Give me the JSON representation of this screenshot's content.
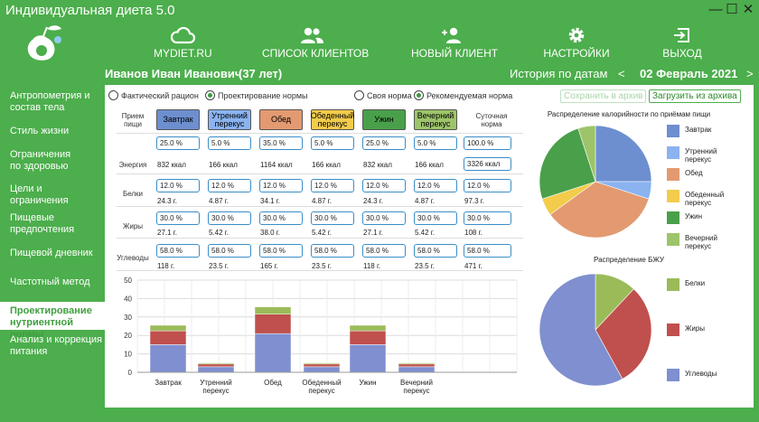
{
  "app": {
    "title": "Индивидуальная диета 5.0"
  },
  "window_controls": {
    "minimize": "—",
    "maximize": "☐",
    "close": "✕"
  },
  "nav": {
    "items": [
      {
        "label": "MYDIET.RU",
        "icon": "cloud-icon"
      },
      {
        "label": "СПИСОК КЛИЕНТОВ",
        "icon": "users-icon"
      },
      {
        "label": "НОВЫЙ КЛИЕНТ",
        "icon": "add-user-icon"
      },
      {
        "label": "НАСТРОЙКИ",
        "icon": "gear-icon"
      },
      {
        "label": "ВЫХОД",
        "icon": "exit-icon"
      }
    ]
  },
  "header": {
    "client_name": "Иванов Иван Иванович",
    "client_age": "(37 лет)",
    "history_label": "История по датам",
    "prev": "<",
    "date": "02 Февраль 2021",
    "next": ">"
  },
  "sidebar": {
    "items": [
      {
        "label": "Антропометрия и состав тела",
        "active": false
      },
      {
        "label": "Стиль жизни",
        "active": false
      },
      {
        "label": "Ограничения по здоровью",
        "active": false
      },
      {
        "label": "Цели и ограничения",
        "active": false
      },
      {
        "label": "Пищевые предпочтения",
        "active": false
      },
      {
        "label": "Пищевой дневник",
        "active": false
      },
      {
        "label": "Частотный метод",
        "active": false
      },
      {
        "label": "Проектирование нутриентной нормы",
        "active": true
      },
      {
        "label": "Анализ и коррекция питания",
        "active": false
      }
    ]
  },
  "modes": {
    "fact": {
      "label": "Фактический рацион",
      "checked": false
    },
    "design": {
      "label": "Проектирование нормы",
      "checked": true
    },
    "own": {
      "label": "Своя норма",
      "checked": false
    },
    "recommended": {
      "label": "Рекомендуемая норма",
      "checked": true
    }
  },
  "archive": {
    "save": "Сохранить в архив",
    "load": "Загрузить из архива"
  },
  "table": {
    "meal_header": "Прием пищи",
    "daily_header": "Суточная норма",
    "row_labels": {
      "energy": "Энергия",
      "protein": "Белки",
      "fat": "Жиры",
      "carbs": "Углеводы"
    },
    "meals": [
      {
        "name": "Завтрак",
        "color": "#6d8fd0",
        "energy_pct": "25.0 %",
        "energy": "832 ккал",
        "protein_pct": "12.0 %",
        "protein": "24.3 г.",
        "fat_pct": "30.0 %",
        "fat": "27.1 г.",
        "carbs_pct": "58.0 %",
        "carbs": "118 г."
      },
      {
        "name": "Утренний перекус",
        "color": "#8ab3f0",
        "energy_pct": "5.0 %",
        "energy": "166 ккал",
        "protein_pct": "12.0 %",
        "protein": "4.87 г.",
        "fat_pct": "30.0 %",
        "fat": "5.42 г.",
        "carbs_pct": "58.0 %",
        "carbs": "23.5 г."
      },
      {
        "name": "Обед",
        "color": "#e39a70",
        "energy_pct": "35.0 %",
        "energy": "1164 ккал",
        "protein_pct": "12.0 %",
        "protein": "34.1 г.",
        "fat_pct": "30.0 %",
        "fat": "38.0 г.",
        "carbs_pct": "58.0 %",
        "carbs": "165 г."
      },
      {
        "name": "Обеденный перекус",
        "color": "#f2cc4a",
        "energy_pct": "5.0 %",
        "energy": "166 ккал",
        "protein_pct": "12.0 %",
        "protein": "4.87 г.",
        "fat_pct": "30.0 %",
        "fat": "5.42 г.",
        "carbs_pct": "58.0 %",
        "carbs": "23.5 г."
      },
      {
        "name": "Ужин",
        "color": "#4aa04a",
        "energy_pct": "25.0 %",
        "energy": "832 ккал",
        "protein_pct": "12.0 %",
        "protein": "24.3 г.",
        "fat_pct": "30.0 %",
        "fat": "27.1 г.",
        "carbs_pct": "58.0 %",
        "carbs": "118 г."
      },
      {
        "name": "Вечерний перекус",
        "color": "#9dc46a",
        "energy_pct": "5.0 %",
        "energy": "166 ккал",
        "protein_pct": "12.0 %",
        "protein": "4.87 г.",
        "fat_pct": "30.0 %",
        "fat": "5.42 г.",
        "carbs_pct": "58.0 %",
        "carbs": "23.5 г."
      }
    ],
    "daily": {
      "energy_pct": "100.0 %",
      "energy": "3326 ккал",
      "protein_pct": "12.0 %",
      "protein": "97.3 г.",
      "fat_pct": "30.0 %",
      "fat": "108 г.",
      "carbs_pct": "58.0 %",
      "carbs": "471 г."
    }
  },
  "chart_data": [
    {
      "type": "bar",
      "stacked": true,
      "categories": [
        "Завтрак",
        "Утренний перекус",
        "Обед",
        "Обеденный перекус",
        "Ужин",
        "Вечерний перекус"
      ],
      "series": [
        {
          "color": "#7f8fcf",
          "values": [
            15.0,
            3.0,
            21.0,
            3.0,
            15.0,
            3.0
          ]
        },
        {
          "color": "#c0504d",
          "values": [
            7.5,
            1.5,
            10.5,
            1.5,
            7.5,
            1.5
          ]
        },
        {
          "color": "#9bbb59",
          "values": [
            3.0,
            0.6,
            4.0,
            0.6,
            3.0,
            0.6
          ]
        }
      ],
      "ylim": [
        0,
        50
      ],
      "yticks": [
        0,
        10,
        20,
        30,
        40,
        50
      ],
      "grid": true
    },
    {
      "type": "pie",
      "title": "Распределение калорийности по приёмам пищи",
      "labels": [
        "Завтрак",
        "Утренний перекус",
        "Обед",
        "Обеденный перекус",
        "Ужин",
        "Вечерний перекус"
      ],
      "values": [
        25,
        5,
        35,
        5,
        25,
        5
      ],
      "colors": [
        "#6d8fd0",
        "#8ab3f0",
        "#e39a70",
        "#f2cc4a",
        "#4aa04a",
        "#9dc46a"
      ],
      "legend": "right"
    },
    {
      "type": "pie",
      "title": "Распределение БЖУ",
      "labels": [
        "Белки",
        "Жиры",
        "Углеводы"
      ],
      "values": [
        12,
        30,
        58
      ],
      "colors": [
        "#9bbb59",
        "#c0504d",
        "#7f8fcf"
      ],
      "legend": "right"
    }
  ]
}
